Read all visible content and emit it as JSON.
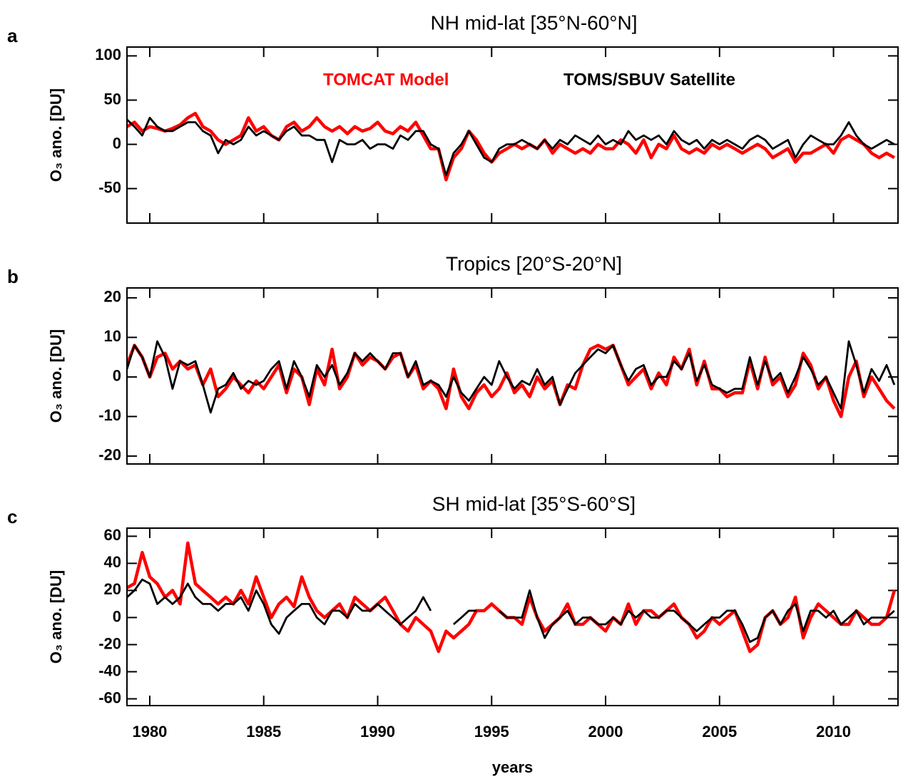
{
  "chart_data": [
    {
      "type": "line",
      "panel_label": "a",
      "title": "NH mid-lat [35°N-60°N]",
      "ylabel": "O₃ ano. [DU]",
      "xlim": [
        1979,
        2012.83
      ],
      "xticks": [
        1980,
        1985,
        1990,
        1995,
        2000,
        2005,
        2010
      ],
      "ylim": [
        -89,
        110
      ],
      "yticks": [
        -50,
        0,
        50,
        100
      ],
      "x": [
        1979,
        1979.33,
        1979.67,
        1980,
        1980.33,
        1980.67,
        1981,
        1981.33,
        1981.67,
        1982,
        1982.33,
        1982.67,
        1983,
        1983.33,
        1983.67,
        1984,
        1984.33,
        1984.67,
        1985,
        1985.33,
        1985.67,
        1986,
        1986.33,
        1986.67,
        1987,
        1987.33,
        1987.67,
        1988,
        1988.33,
        1988.67,
        1989,
        1989.33,
        1989.67,
        1990,
        1990.33,
        1990.67,
        1991,
        1991.33,
        1991.67,
        1992,
        1992.33,
        1992.67,
        1993,
        1993.33,
        1993.67,
        1994,
        1994.33,
        1994.67,
        1995,
        1995.33,
        1995.67,
        1996,
        1996.33,
        1996.67,
        1997,
        1997.33,
        1997.67,
        1998,
        1998.33,
        1998.67,
        1999,
        1999.33,
        1999.67,
        2000,
        2000.33,
        2000.67,
        2001,
        2001.33,
        2001.67,
        2002,
        2002.33,
        2002.67,
        2003,
        2003.33,
        2003.67,
        2004,
        2004.33,
        2004.67,
        2005,
        2005.33,
        2005.67,
        2006,
        2006.33,
        2006.67,
        2007,
        2007.33,
        2007.67,
        2008,
        2008.33,
        2008.67,
        2009,
        2009.33,
        2009.67,
        2010,
        2010.33,
        2010.67,
        2011,
        2011.33,
        2011.67,
        2012,
        2012.33,
        2012.67
      ],
      "series": [
        {
          "name": "TOMCAT Model",
          "color": "#ff0000",
          "values": [
            20,
            25,
            15,
            20,
            18,
            15,
            18,
            22,
            30,
            35,
            20,
            15,
            5,
            0,
            5,
            10,
            30,
            15,
            20,
            10,
            5,
            20,
            25,
            15,
            20,
            30,
            20,
            15,
            20,
            12,
            20,
            15,
            18,
            25,
            15,
            12,
            20,
            15,
            25,
            10,
            -5,
            -5,
            -40,
            -15,
            -5,
            15,
            5,
            -10,
            -20,
            -10,
            -5,
            0,
            -5,
            0,
            -5,
            5,
            -10,
            0,
            -5,
            -10,
            -5,
            -10,
            0,
            -5,
            -5,
            5,
            0,
            -10,
            5,
            -15,
            0,
            -5,
            10,
            -5,
            -10,
            -5,
            -10,
            0,
            -5,
            0,
            -5,
            -10,
            -5,
            0,
            -5,
            -15,
            -10,
            -5,
            -20,
            -10,
            -10,
            -5,
            0,
            -10,
            5,
            10,
            5,
            0,
            -10,
            -15,
            -10,
            -15
          ]
        },
        {
          "name": "TOMS/SBUV Satellite",
          "color": "#000000",
          "values": [
            28,
            20,
            10,
            30,
            20,
            15,
            15,
            20,
            25,
            25,
            15,
            10,
            -10,
            5,
            0,
            5,
            20,
            10,
            15,
            10,
            5,
            15,
            20,
            10,
            10,
            5,
            5,
            -20,
            5,
            0,
            0,
            5,
            -5,
            0,
            0,
            -5,
            10,
            5,
            15,
            15,
            0,
            -5,
            -35,
            -10,
            0,
            15,
            0,
            -15,
            -20,
            -5,
            0,
            0,
            5,
            0,
            -5,
            5,
            -5,
            5,
            0,
            10,
            5,
            0,
            10,
            0,
            5,
            0,
            15,
            5,
            10,
            5,
            10,
            0,
            15,
            5,
            0,
            5,
            -5,
            5,
            0,
            5,
            0,
            -5,
            5,
            10,
            5,
            -5,
            0,
            5,
            -15,
            0,
            10,
            5,
            0,
            0,
            10,
            25,
            10,
            0,
            -5,
            0,
            5,
            0
          ]
        }
      ]
    },
    {
      "type": "line",
      "panel_label": "b",
      "title": "Tropics [20°S-20°N]",
      "ylabel": "O₃ ano. [DU]",
      "xlim": [
        1979,
        2012.83
      ],
      "xticks": [
        1980,
        1985,
        1990,
        1995,
        2000,
        2005,
        2010
      ],
      "ylim": [
        -22,
        22.5
      ],
      "yticks": [
        -20,
        -10,
        0,
        10,
        20
      ],
      "x": [
        1979,
        1979.33,
        1979.67,
        1980,
        1980.33,
        1980.67,
        1981,
        1981.33,
        1981.67,
        1982,
        1982.33,
        1982.67,
        1983,
        1983.33,
        1983.67,
        1984,
        1984.33,
        1984.67,
        1985,
        1985.33,
        1985.67,
        1986,
        1986.33,
        1986.67,
        1987,
        1987.33,
        1987.67,
        1988,
        1988.33,
        1988.67,
        1989,
        1989.33,
        1989.67,
        1990,
        1990.33,
        1990.67,
        1991,
        1991.33,
        1991.67,
        1992,
        1992.33,
        1992.67,
        1993,
        1993.33,
        1993.67,
        1994,
        1994.33,
        1994.67,
        1995,
        1995.33,
        1995.67,
        1996,
        1996.33,
        1996.67,
        1997,
        1997.33,
        1997.67,
        1998,
        1998.33,
        1998.67,
        1999,
        1999.33,
        1999.67,
        2000,
        2000.33,
        2000.67,
        2001,
        2001.33,
        2001.67,
        2002,
        2002.33,
        2002.67,
        2003,
        2003.33,
        2003.67,
        2004,
        2004.33,
        2004.67,
        2005,
        2005.33,
        2005.67,
        2006,
        2006.33,
        2006.67,
        2007,
        2007.33,
        2007.67,
        2008,
        2008.33,
        2008.67,
        2009,
        2009.33,
        2009.67,
        2010,
        2010.33,
        2010.67,
        2011,
        2011.33,
        2011.67,
        2012,
        2012.33,
        2012.67
      ],
      "series": [
        {
          "color": "#ff0000",
          "values": [
            3,
            8,
            5,
            0,
            5,
            6,
            2,
            4,
            2,
            3,
            -2,
            2,
            -5,
            -3,
            0,
            -2,
            -4,
            -1,
            -3,
            0,
            3,
            -4,
            2,
            0,
            -7,
            2,
            -2,
            7,
            -3,
            0,
            6,
            3,
            5,
            4,
            2,
            5,
            6,
            0,
            3,
            -3,
            -1,
            -3,
            -8,
            2,
            -5,
            -8,
            -4,
            -2,
            -5,
            -3,
            1,
            -4,
            -2,
            -5,
            0,
            -3,
            -1,
            -7,
            -2,
            -3,
            3,
            7,
            8,
            7,
            8,
            3,
            -2,
            0,
            2,
            -3,
            1,
            -2,
            5,
            2,
            7,
            -2,
            4,
            -3,
            -3,
            -5,
            -4,
            -4,
            4,
            -3,
            5,
            -2,
            0,
            -5,
            -2,
            6,
            3,
            -3,
            0,
            -6,
            -10,
            0,
            4,
            -5,
            0,
            -3,
            -6,
            -8
          ]
        },
        {
          "color": "#000000",
          "values": [
            2,
            8,
            5,
            0,
            9,
            5,
            -3,
            4,
            3,
            4,
            -2,
            -9,
            -3,
            -2,
            1,
            -3,
            -1,
            -2,
            -1,
            2,
            4,
            -3,
            4,
            0,
            -5,
            3,
            0,
            3,
            -2,
            1,
            6,
            4,
            6,
            4,
            2,
            6,
            6,
            0,
            4,
            -2,
            -1,
            -2,
            -5,
            0,
            -4,
            -6,
            -3,
            0,
            -2,
            4,
            0,
            -3,
            -1,
            -2,
            2,
            -2,
            0,
            -7,
            -3,
            1,
            3,
            5,
            7,
            6,
            8,
            3,
            -1,
            2,
            3,
            -2,
            0,
            0,
            4,
            2,
            6,
            -1,
            3,
            -2,
            -3,
            -4,
            -3,
            -3,
            5,
            -2,
            4,
            -1,
            1,
            -4,
            0,
            5,
            2,
            -2,
            0,
            -4,
            -8,
            9,
            3,
            -4,
            2,
            -1,
            3,
            -2
          ]
        }
      ]
    },
    {
      "type": "line",
      "panel_label": "c",
      "title": "SH mid-lat [35°S-60°S]",
      "ylabel": "O₃ ano. [DU]",
      "xlabel": "years",
      "xlim": [
        1979,
        2012.83
      ],
      "xticks": [
        1980,
        1985,
        1990,
        1995,
        2000,
        2005,
        2010
      ],
      "ylim": [
        -65,
        66
      ],
      "yticks": [
        -60,
        -40,
        -20,
        0,
        20,
        40,
        60
      ],
      "x": [
        1979,
        1979.33,
        1979.67,
        1980,
        1980.33,
        1980.67,
        1981,
        1981.33,
        1981.67,
        1982,
        1982.33,
        1982.67,
        1983,
        1983.33,
        1983.67,
        1984,
        1984.33,
        1984.67,
        1985,
        1985.33,
        1985.67,
        1986,
        1986.33,
        1986.67,
        1987,
        1987.33,
        1987.67,
        1988,
        1988.33,
        1988.67,
        1989,
        1989.33,
        1989.67,
        1990,
        1990.33,
        1990.67,
        1991,
        1991.33,
        1991.67,
        1992,
        1992.33,
        1992.67,
        1993,
        1993.33,
        1993.67,
        1994,
        1994.33,
        1994.67,
        1995,
        1995.33,
        1995.67,
        1996,
        1996.33,
        1996.67,
        1997,
        1997.33,
        1997.67,
        1998,
        1998.33,
        1998.67,
        1999,
        1999.33,
        1999.67,
        2000,
        2000.33,
        2000.67,
        2001,
        2001.33,
        2001.67,
        2002,
        2002.33,
        2002.67,
        2003,
        2003.33,
        2003.67,
        2004,
        2004.33,
        2004.67,
        2005,
        2005.33,
        2005.67,
        2006,
        2006.33,
        2006.67,
        2007,
        2007.33,
        2007.67,
        2008,
        2008.33,
        2008.67,
        2009,
        2009.33,
        2009.67,
        2010,
        2010.33,
        2010.67,
        2011,
        2011.33,
        2011.67,
        2012,
        2012.33,
        2012.67
      ],
      "series": [
        {
          "color": "#ff0000",
          "values": [
            22,
            25,
            48,
            30,
            25,
            15,
            20,
            10,
            55,
            25,
            20,
            15,
            10,
            15,
            10,
            20,
            10,
            30,
            15,
            0,
            10,
            15,
            8,
            30,
            15,
            5,
            0,
            5,
            10,
            0,
            15,
            10,
            5,
            10,
            15,
            5,
            -5,
            -10,
            0,
            -5,
            -10,
            -25,
            -10,
            -15,
            -10,
            -5,
            5,
            5,
            10,
            5,
            0,
            0,
            -5,
            15,
            0,
            -10,
            -5,
            0,
            10,
            -5,
            -5,
            0,
            -5,
            -10,
            0,
            -5,
            10,
            -5,
            5,
            5,
            0,
            5,
            10,
            0,
            -5,
            -15,
            -10,
            0,
            -5,
            0,
            5,
            -10,
            -25,
            -20,
            0,
            5,
            -5,
            0,
            15,
            -15,
            0,
            10,
            5,
            0,
            -5,
            -5,
            5,
            0,
            -5,
            -5,
            0,
            20
          ]
        },
        {
          "color": "#000000",
          "values": [
            15,
            20,
            28,
            25,
            10,
            15,
            10,
            15,
            25,
            15,
            10,
            10,
            5,
            10,
            10,
            15,
            5,
            20,
            10,
            -5,
            -12,
            0,
            5,
            10,
            10,
            0,
            -5,
            5,
            5,
            0,
            10,
            5,
            5,
            10,
            5,
            0,
            -5,
            0,
            5,
            15,
            5,
            null,
            null,
            -5,
            0,
            5,
            5,
            null,
            null,
            5,
            0,
            0,
            0,
            20,
            0,
            -15,
            -5,
            0,
            5,
            -5,
            0,
            0,
            -5,
            -5,
            0,
            -5,
            5,
            0,
            5,
            0,
            0,
            5,
            5,
            0,
            -5,
            -10,
            -5,
            0,
            0,
            5,
            5,
            -5,
            -18,
            -15,
            0,
            5,
            -5,
            5,
            10,
            -10,
            5,
            5,
            0,
            5,
            -5,
            0,
            5,
            -5,
            0,
            0,
            0,
            5
          ]
        }
      ]
    }
  ]
}
